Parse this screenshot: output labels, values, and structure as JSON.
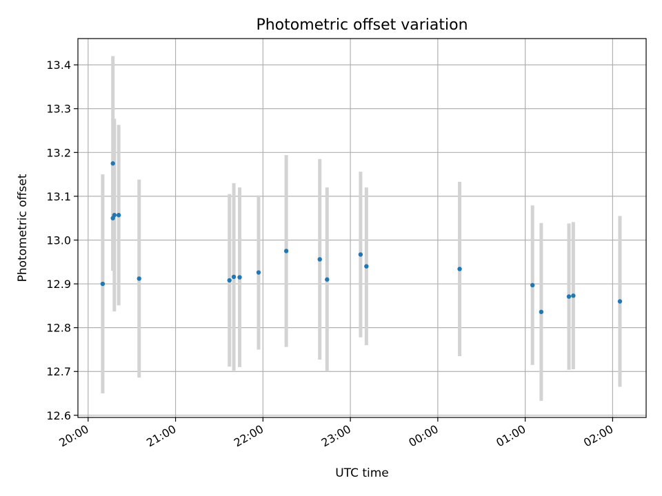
{
  "chart_data": {
    "type": "scatter",
    "title": "Photometric offset variation",
    "xlabel": "UTC time",
    "ylabel": "Photometric offset",
    "x_unit": "hours since 20:00 UTC",
    "xlim": [
      "19:53",
      "02:23"
    ],
    "ylim": [
      12.595,
      13.46
    ],
    "grid": true,
    "marker_color": "#1f77b4",
    "errorbar_color": "#d3d3d3",
    "x_ticks": [
      "20:00",
      "21:00",
      "22:00",
      "23:00",
      "00:00",
      "01:00",
      "02:00"
    ],
    "y_ticks": [
      "12.6",
      "12.7",
      "12.8",
      "12.9",
      "13.0",
      "13.1",
      "13.2",
      "13.3",
      "13.4"
    ],
    "points": [
      {
        "x": "20:10",
        "y": 12.9,
        "err": 0.25
      },
      {
        "x": "20:17",
        "y": 13.175,
        "err": 0.245
      },
      {
        "x": "20:17",
        "y": 13.05,
        "err": 0.12
      },
      {
        "x": "20:18",
        "y": 13.057,
        "err": 0.22
      },
      {
        "x": "20:21",
        "y": 13.057,
        "err": 0.206
      },
      {
        "x": "20:35",
        "y": 12.912,
        "err": 0.226
      },
      {
        "x": "21:37",
        "y": 12.908,
        "err": 0.197
      },
      {
        "x": "21:40",
        "y": 12.916,
        "err": 0.214
      },
      {
        "x": "21:44",
        "y": 12.915,
        "err": 0.205
      },
      {
        "x": "21:57",
        "y": 12.926,
        "err": 0.176
      },
      {
        "x": "22:16",
        "y": 12.975,
        "err": 0.219
      },
      {
        "x": "22:39",
        "y": 12.956,
        "err": 0.229
      },
      {
        "x": "22:44",
        "y": 12.91,
        "err": 0.21
      },
      {
        "x": "23:07",
        "y": 12.967,
        "err": 0.189
      },
      {
        "x": "23:11",
        "y": 12.94,
        "err": 0.18
      },
      {
        "x": "00:15",
        "y": 12.934,
        "err": 0.199
      },
      {
        "x": "01:05",
        "y": 12.897,
        "err": 0.182
      },
      {
        "x": "01:11",
        "y": 12.836,
        "err": 0.203
      },
      {
        "x": "01:30",
        "y": 12.871,
        "err": 0.167
      },
      {
        "x": "01:33",
        "y": 12.873,
        "err": 0.168
      },
      {
        "x": "02:05",
        "y": 12.86,
        "err": 0.195
      }
    ]
  }
}
